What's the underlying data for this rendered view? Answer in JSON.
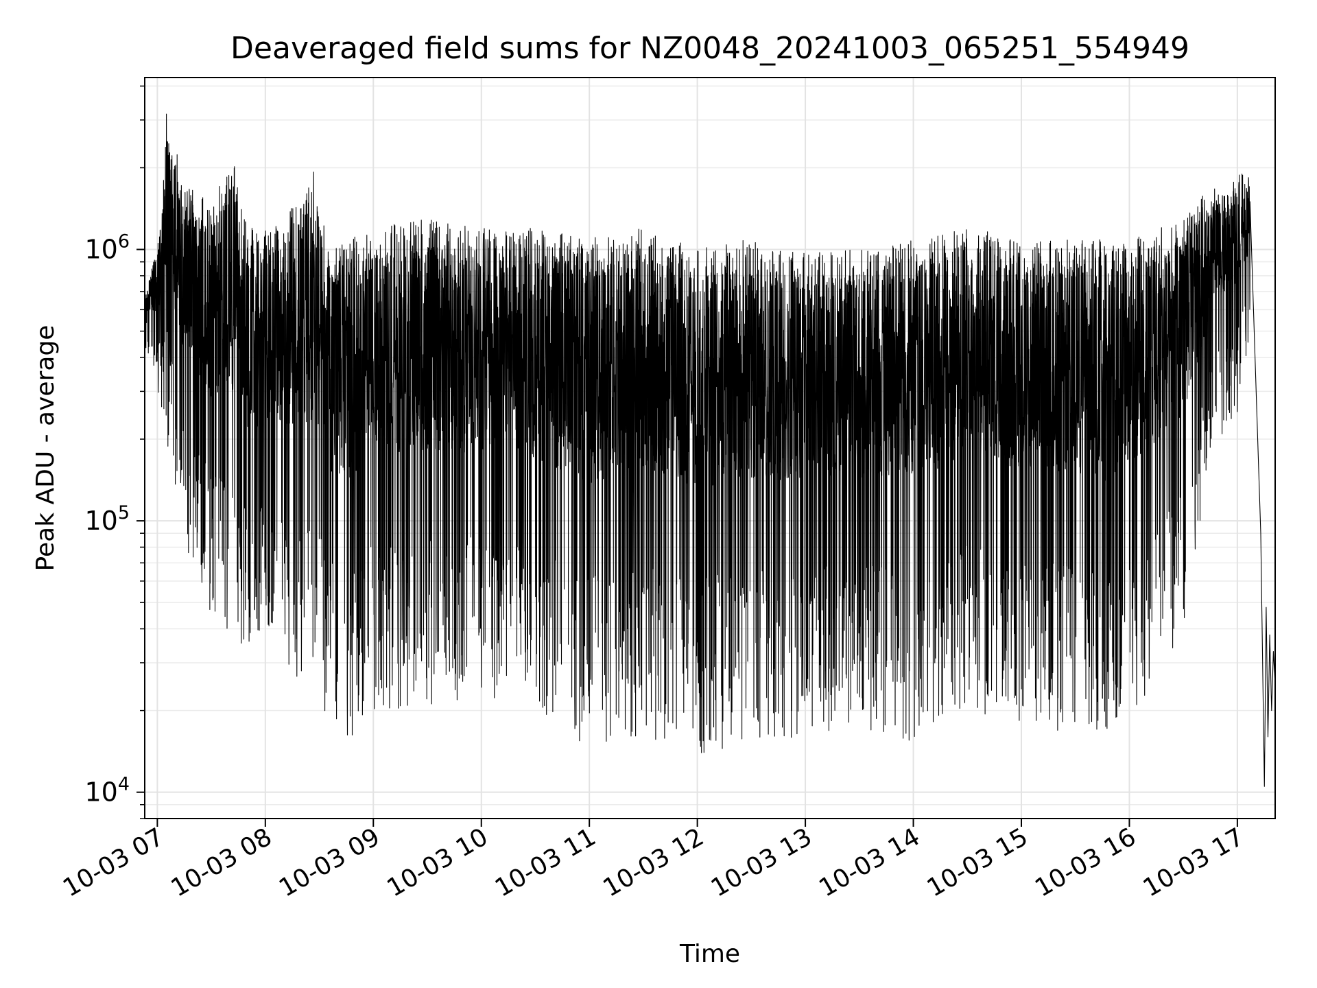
{
  "chart_data": {
    "type": "line",
    "title": "Deaveraged field sums for NZ0048_20241003_065251_554949",
    "xlabel": "Time",
    "ylabel": "Peak ADU - average",
    "x_is_datetime": true,
    "xlim": [
      "2024-10-03 06:53",
      "2024-10-03 17:21"
    ],
    "y_scale": "log",
    "ylim": [
      8000,
      4300000
    ],
    "grid": true,
    "x_ticks": [
      "10-03 07",
      "10-03 08",
      "10-03 09",
      "10-03 10",
      "10-03 11",
      "10-03 12",
      "10-03 13",
      "10-03 14",
      "10-03 15",
      "10-03 16",
      "10-03 17"
    ],
    "x_tick_values": [
      "2024-10-03 07:00",
      "2024-10-03 08:00",
      "2024-10-03 09:00",
      "2024-10-03 10:00",
      "2024-10-03 11:00",
      "2024-10-03 12:00",
      "2024-10-03 13:00",
      "2024-10-03 14:00",
      "2024-10-03 15:00",
      "2024-10-03 16:00",
      "2024-10-03 17:00"
    ],
    "y_ticks": [
      {
        "base": "10",
        "exp": "4",
        "value": 10000
      },
      {
        "base": "10",
        "exp": "5",
        "value": 100000
      },
      {
        "base": "10",
        "exp": "6",
        "value": 1000000
      }
    ],
    "series": [
      {
        "color": "#000000",
        "description_note_free": true,
        "upper_envelope": [
          [
            "2024-10-03 06:53",
            700000
          ],
          [
            "2024-10-03 07:00",
            1100000
          ],
          [
            "2024-10-03 07:03",
            1700000
          ],
          [
            "2024-10-03 07:05",
            3300000
          ],
          [
            "2024-10-03 07:15",
            1800000
          ],
          [
            "2024-10-03 07:30",
            1500000
          ],
          [
            "2024-10-03 07:42",
            2200000
          ],
          [
            "2024-10-03 07:50",
            1200000
          ],
          [
            "2024-10-03 08:10",
            1300000
          ],
          [
            "2024-10-03 08:28",
            2000000
          ],
          [
            "2024-10-03 08:35",
            1000000
          ],
          [
            "2024-10-03 09:00",
            1200000
          ],
          [
            "2024-10-03 09:30",
            1300000
          ],
          [
            "2024-10-03 10:00",
            1200000
          ],
          [
            "2024-10-03 10:30",
            1200000
          ],
          [
            "2024-10-03 11:00",
            1100000
          ],
          [
            "2024-10-03 11:30",
            1200000
          ],
          [
            "2024-10-03 12:00",
            1000000
          ],
          [
            "2024-10-03 12:30",
            1100000
          ],
          [
            "2024-10-03 13:00",
            1000000
          ],
          [
            "2024-10-03 13:30",
            1000000
          ],
          [
            "2024-10-03 14:00",
            1100000
          ],
          [
            "2024-10-03 14:30",
            1200000
          ],
          [
            "2024-10-03 15:00",
            1100000
          ],
          [
            "2024-10-03 15:30",
            1100000
          ],
          [
            "2024-10-03 16:00",
            1100000
          ],
          [
            "2024-10-03 16:30",
            1300000
          ],
          [
            "2024-10-03 16:45",
            1700000
          ],
          [
            "2024-10-03 17:00",
            1900000
          ],
          [
            "2024-10-03 17:07",
            1900000
          ]
        ],
        "lower_envelope": [
          [
            "2024-10-03 06:53",
            450000
          ],
          [
            "2024-10-03 07:00",
            300000
          ],
          [
            "2024-10-03 07:05",
            200000
          ],
          [
            "2024-10-03 07:15",
            80000
          ],
          [
            "2024-10-03 07:30",
            45000
          ],
          [
            "2024-10-03 07:45",
            30000
          ],
          [
            "2024-10-03 08:00",
            35000
          ],
          [
            "2024-10-03 08:20",
            25000
          ],
          [
            "2024-10-03 08:45",
            15000
          ],
          [
            "2024-10-03 09:00",
            20000
          ],
          [
            "2024-10-03 09:30",
            20000
          ],
          [
            "2024-10-03 10:00",
            22000
          ],
          [
            "2024-10-03 10:30",
            20000
          ],
          [
            "2024-10-03 11:00",
            14000
          ],
          [
            "2024-10-03 11:30",
            16000
          ],
          [
            "2024-10-03 11:52",
            13500
          ],
          [
            "2024-10-03 12:30",
            15000
          ],
          [
            "2024-10-03 13:00",
            16000
          ],
          [
            "2024-10-03 13:30",
            17000
          ],
          [
            "2024-10-03 14:00",
            15000
          ],
          [
            "2024-10-03 14:30",
            20000
          ],
          [
            "2024-10-03 15:00",
            18000
          ],
          [
            "2024-10-03 15:30",
            16000
          ],
          [
            "2024-10-03 15:50",
            14000
          ],
          [
            "2024-10-03 16:30",
            38000
          ],
          [
            "2024-10-03 16:45",
            180000
          ],
          [
            "2024-10-03 17:00",
            250000
          ],
          [
            "2024-10-03 17:07",
            500000
          ]
        ],
        "tail": [
          [
            "2024-10-03 17:07",
            1500000
          ],
          [
            "2024-10-03 17:13",
            90000
          ],
          [
            "2024-10-03 17:15",
            10500
          ],
          [
            "2024-10-03 17:16",
            48000
          ],
          [
            "2024-10-03 17:17",
            16000
          ],
          [
            "2024-10-03 17:18",
            38000
          ],
          [
            "2024-10-03 17:19",
            20000
          ],
          [
            "2024-10-03 17:20",
            33000
          ],
          [
            "2024-10-03 17:21",
            25000
          ]
        ]
      }
    ]
  }
}
